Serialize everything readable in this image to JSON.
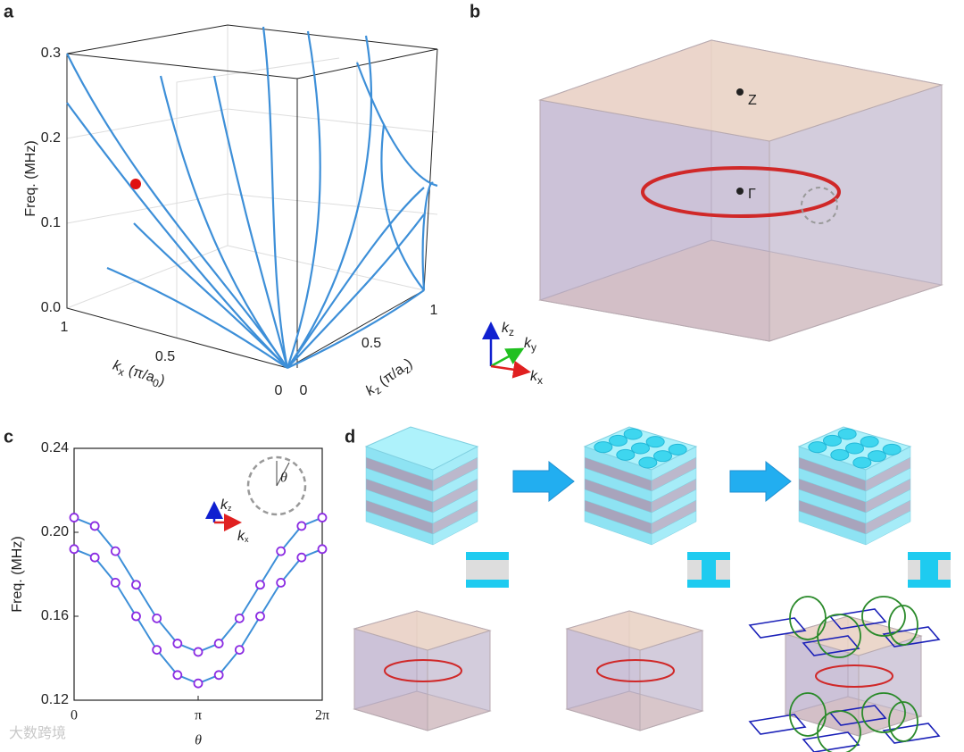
{
  "panel_a": {
    "label": "a",
    "z_label": "Freq. (MHz)",
    "z_ticks": [
      "0.3",
      "0.2",
      "0.1",
      "0.0"
    ],
    "kx_ticks": [
      "1",
      "0.5",
      "0"
    ],
    "kz_ticks": [
      "0",
      "0.5",
      "1"
    ],
    "kx_label": {
      "main": "k",
      "sub": "x",
      "unit": " (π/a",
      "unit_sub": "0",
      "close": ")"
    },
    "kz_label": {
      "main": "k",
      "sub": "z",
      "unit": " (π/a",
      "unit_sub": "z",
      "close": ")"
    }
  },
  "panel_b": {
    "label": "b",
    "points": [
      "Z",
      "Γ"
    ],
    "axes": [
      {
        "k": "k",
        "sub": "z"
      },
      {
        "k": "k",
        "sub": "y"
      },
      {
        "k": "k",
        "sub": "x"
      }
    ]
  },
  "chart_data": {
    "type": "line",
    "label": "c",
    "ylabel": "Freq. (MHz)",
    "xlabel": "θ",
    "x": [
      0,
      0.5236,
      1.0472,
      1.5708,
      2.0944,
      2.618,
      3.1416,
      3.6652,
      4.1888,
      4.7124,
      5.236,
      5.7596,
      6.2832
    ],
    "xlim": [
      0,
      6.2832
    ],
    "xticks": [
      0,
      {
        "value": 3.1416,
        "label": "π"
      },
      {
        "value": 6.2832,
        "label": "2π"
      }
    ],
    "ylim": [
      0.12,
      0.24
    ],
    "yticks": [
      0.12,
      0.16,
      {
        "value": 0.2,
        "label": "0.20"
      },
      0.24
    ],
    "series": [
      {
        "color": "#3d8fd8",
        "marker_color": "#8b2be2",
        "values": [
          0.207,
          0.203,
          0.191,
          0.175,
          0.159,
          0.147,
          0.143,
          0.147,
          0.159,
          0.175,
          0.191,
          0.203,
          0.207
        ]
      },
      {
        "color": "#3d8fd8",
        "marker_color": "#8b2be2",
        "values": [
          0.192,
          0.188,
          0.176,
          0.16,
          0.144,
          0.132,
          0.128,
          0.132,
          0.144,
          0.16,
          0.176,
          0.188,
          0.192
        ]
      }
    ],
    "inset": {
      "axes": [
        {
          "k": "k",
          "sub": "z"
        },
        {
          "k": "k",
          "sub": "x"
        }
      ],
      "angle": "θ"
    }
  },
  "panel_d": {
    "label": "d"
  },
  "watermark": "大数跨境"
}
